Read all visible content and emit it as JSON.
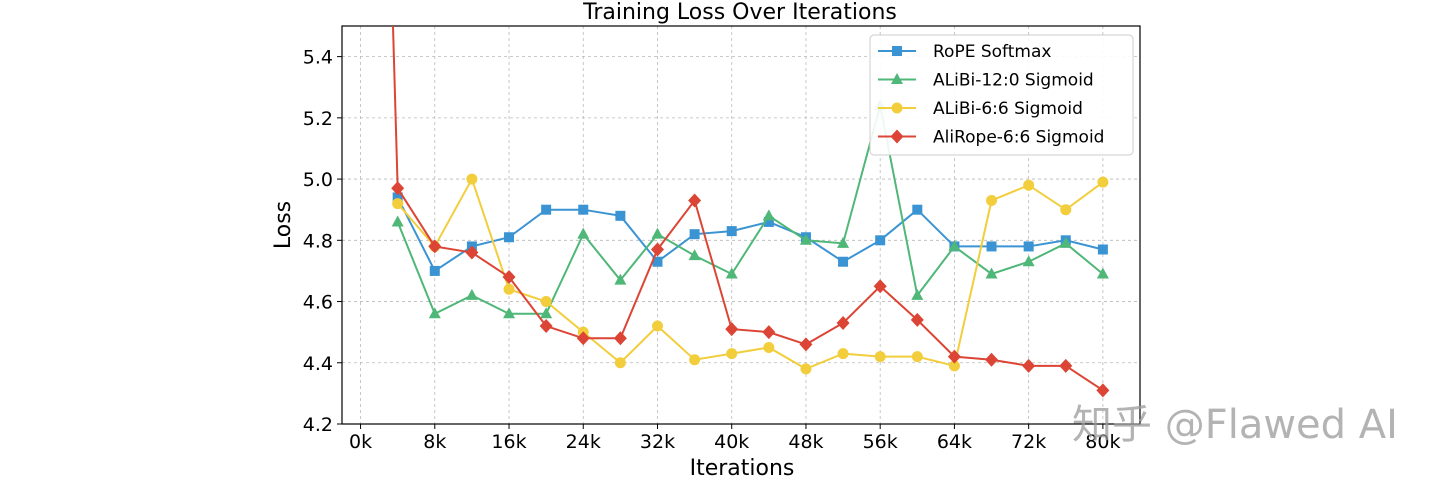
{
  "chart_data": {
    "type": "line",
    "title": "Training Loss Over Iterations",
    "xlabel": "Iterations",
    "ylabel": "Loss",
    "xlim": [
      -2000,
      84000
    ],
    "ylim": [
      4.2,
      5.5
    ],
    "x_ticks": [
      0,
      8000,
      16000,
      24000,
      32000,
      40000,
      48000,
      56000,
      64000,
      72000,
      80000
    ],
    "x_tick_labels": [
      "0k",
      "8k",
      "16k",
      "24k",
      "32k",
      "40k",
      "48k",
      "56k",
      "64k",
      "72k",
      "80k"
    ],
    "y_ticks": [
      4.2,
      4.4,
      4.6,
      4.8,
      5.0,
      5.2,
      5.4
    ],
    "y_tick_labels": [
      "4.2",
      "4.4",
      "4.6",
      "4.8",
      "5.0",
      "5.2",
      "5.4"
    ],
    "grid": true,
    "legend_position": "top-right",
    "x": [
      4000,
      8000,
      12000,
      16000,
      20000,
      24000,
      28000,
      32000,
      36000,
      40000,
      44000,
      48000,
      52000,
      56000,
      60000,
      64000,
      68000,
      72000,
      76000,
      80000
    ],
    "series": [
      {
        "name": "RoPE Softmax",
        "color": "#3a93d3",
        "marker": "square",
        "values": [
          4.94,
          4.7,
          4.78,
          4.81,
          4.9,
          4.9,
          4.88,
          4.73,
          4.82,
          4.83,
          4.86,
          4.81,
          4.73,
          4.8,
          4.9,
          4.78,
          4.78,
          4.78,
          4.8,
          4.77
        ]
      },
      {
        "name": "ALiBi-12:0 Sigmoid",
        "color": "#4fb778",
        "marker": "triangle",
        "values": [
          4.86,
          4.56,
          4.62,
          4.56,
          4.56,
          4.82,
          4.67,
          4.82,
          4.75,
          4.69,
          4.88,
          4.8,
          4.79,
          5.24,
          4.62,
          4.78,
          4.69,
          4.73,
          4.79,
          4.69
        ]
      },
      {
        "name": "ALiBi-6:6 Sigmoid",
        "color": "#f2cd3c",
        "marker": "circle",
        "values": [
          4.92,
          4.78,
          5.0,
          4.64,
          4.6,
          4.5,
          4.4,
          4.52,
          4.41,
          4.43,
          4.45,
          4.38,
          4.43,
          4.42,
          4.42,
          4.39,
          4.93,
          4.98,
          4.9,
          4.99
        ]
      },
      {
        "name": "AliRope-6:6 Sigmoid",
        "color": "#dc4535",
        "marker": "diamond",
        "pre_point": {
          "x": 3400,
          "y": 5.6
        },
        "values": [
          4.97,
          4.78,
          4.76,
          4.68,
          4.52,
          4.48,
          4.48,
          4.77,
          4.93,
          4.51,
          4.5,
          4.46,
          4.53,
          4.65,
          4.54,
          4.42,
          4.41,
          4.39,
          4.39,
          4.31
        ]
      }
    ]
  },
  "watermark": "知乎 @Flawed AI"
}
